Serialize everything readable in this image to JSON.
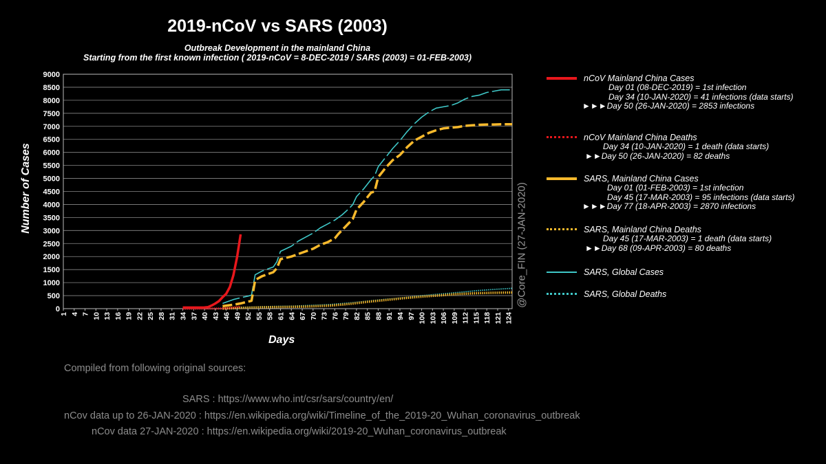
{
  "title": "2019-nCoV vs SARS (2003)",
  "subtitle1": "Outbreak Development in the mainland China",
  "subtitle2": "Starting from the first known infection ( 2019-nCoV = 8-DEC-2019 / SARS (2003) = 01-FEB-2003)",
  "watermark": "@Core_FIN  (27-JAN-2020)",
  "legend": [
    {
      "name": "nCoV Mainland China Cases",
      "color": "#e8171c",
      "style": "solid-thick",
      "lines": [
        "Day 01 (08-DEC-2019) = 1st infection",
        "Day 34 (10-JAN-2020) = 41 infections (data starts)",
        "►►►Day 50 (26-JAN-2020) = 2853 infections"
      ]
    },
    {
      "name": "nCoV Mainland China Deaths",
      "color": "#e8171c",
      "style": "dotted",
      "lines": [
        "Day 34 (10-JAN-2020) = 1 death (data starts)",
        "►►Day 50 (26-JAN-2020) = 82 deaths"
      ]
    },
    {
      "name": "SARS, Mainland China Cases",
      "color": "#f7b92c",
      "style": "dashed",
      "lines": [
        "Day 01 (01-FEB-2003) = 1st  infection",
        "Day 45 (17-MAR-2003) = 95 infections (data starts)",
        "►►►Day 77 (18-APR-2003) = 2870 infections"
      ]
    },
    {
      "name": "SARS, Mainland China Deaths",
      "color": "#f7b92c",
      "style": "dotted",
      "lines": [
        "Day 45 (17-MAR-2003) = 1 death (data starts)",
        "►►Day 68 (09-APR-2003) = 80 deaths"
      ]
    },
    {
      "name": "SARS, Global Cases",
      "color": "#3fc8c8",
      "style": "solid-thin",
      "lines": []
    },
    {
      "name": "SARS, Global Deaths",
      "color": "#3fc8c8",
      "style": "dotted",
      "lines": []
    }
  ],
  "sources": {
    "heading": "Compiled from following original sources:",
    "lines": [
      "SARS : https://www.who.int/csr/sars/country/en/",
      "nCov data up to 26-JAN-2020 : https://en.wikipedia.org/wiki/Timeline_of_the_2019-20_Wuhan_coronavirus_outbreak",
      "nCov data 27-JAN-2020 : https://en.wikipedia.org/wiki/2019-20_Wuhan_coronavirus_outbreak"
    ]
  },
  "chart_data": {
    "type": "line",
    "title": "2019-nCoV vs SARS (2003)",
    "xlabel": "Days",
    "ylabel": "Number of Cases",
    "xlim": [
      1,
      125
    ],
    "ylim": [
      0,
      9000
    ],
    "yticks": [
      0,
      500,
      1000,
      1500,
      2000,
      2500,
      3000,
      3500,
      4000,
      4500,
      5000,
      5500,
      6000,
      6500,
      7000,
      7500,
      8000,
      8500,
      9000
    ],
    "xticks": [
      1,
      4,
      7,
      10,
      13,
      16,
      19,
      22,
      25,
      28,
      31,
      34,
      37,
      40,
      43,
      46,
      49,
      52,
      55,
      58,
      61,
      64,
      67,
      70,
      73,
      76,
      79,
      82,
      85,
      88,
      91,
      94,
      97,
      100,
      103,
      106,
      109,
      112,
      115,
      118,
      121,
      124
    ],
    "grid": true,
    "series": [
      {
        "name": "nCoV Mainland China Cases",
        "color": "#e8171c",
        "x": [
          34,
          36,
          38,
          40,
          41,
          42,
          43,
          44,
          45,
          46,
          47,
          48,
          49,
          50
        ],
        "y": [
          41,
          41,
          41,
          45,
          62,
          121,
          198,
          291,
          440,
          571,
          830,
          1287,
          1975,
          2853
        ]
      },
      {
        "name": "nCoV Mainland China Deaths",
        "color": "#e8171c",
        "x": [
          34,
          40,
          42,
          44,
          46,
          48,
          50
        ],
        "y": [
          1,
          2,
          3,
          6,
          17,
          41,
          82
        ]
      },
      {
        "name": "SARS, Mainland China Cases",
        "color": "#f7b92c",
        "x": [
          45,
          48,
          50,
          52,
          53,
          54,
          56,
          58,
          59,
          60,
          61,
          64,
          66,
          68,
          70,
          72,
          74,
          76,
          77,
          80,
          81,
          82,
          84,
          86,
          87,
          88,
          90,
          92,
          94,
          96,
          98,
          100,
          102,
          104,
          106,
          108,
          110,
          112,
          114,
          116,
          118,
          120,
          122,
          125
        ],
        "y": [
          95,
          150,
          200,
          270,
          300,
          1100,
          1250,
          1350,
          1400,
          1550,
          1900,
          2000,
          2100,
          2200,
          2300,
          2450,
          2550,
          2700,
          2870,
          3300,
          3450,
          3800,
          4100,
          4450,
          4500,
          5050,
          5400,
          5700,
          5900,
          6200,
          6450,
          6600,
          6750,
          6850,
          6920,
          6950,
          6970,
          7020,
          7040,
          7060,
          7070,
          7070,
          7080,
          7080
        ]
      },
      {
        "name": "SARS, Mainland China Deaths",
        "color": "#f7b92c",
        "x": [
          45,
          50,
          55,
          60,
          68,
          75,
          80,
          85,
          90,
          95,
          100,
          105,
          110,
          115,
          120,
          125
        ],
        "y": [
          1,
          30,
          50,
          60,
          80,
          120,
          180,
          260,
          330,
          400,
          460,
          510,
          560,
          590,
          610,
          620
        ]
      },
      {
        "name": "SARS, Global Cases",
        "color": "#3fc8c8",
        "x": [
          45,
          48,
          50,
          52,
          53,
          54,
          56,
          58,
          59,
          60,
          61,
          64,
          66,
          68,
          70,
          72,
          74,
          76,
          78,
          80,
          81,
          82,
          84,
          86,
          87,
          88,
          90,
          92,
          94,
          96,
          98,
          100,
          102,
          104,
          106,
          108,
          110,
          112,
          114,
          116,
          118,
          120,
          122,
          125
        ],
        "y": [
          200,
          350,
          420,
          480,
          520,
          1300,
          1450,
          1550,
          1600,
          1800,
          2200,
          2400,
          2600,
          2750,
          2900,
          3100,
          3250,
          3400,
          3600,
          3850,
          4000,
          4300,
          4600,
          4950,
          5100,
          5450,
          5800,
          6150,
          6450,
          6800,
          7100,
          7350,
          7550,
          7700,
          7750,
          7800,
          7900,
          8050,
          8150,
          8200,
          8300,
          8350,
          8400,
          8400
        ]
      },
      {
        "name": "SARS, Global Deaths",
        "color": "#3fc8c8",
        "x": [
          45,
          50,
          55,
          60,
          65,
          70,
          75,
          80,
          85,
          90,
          95,
          100,
          105,
          110,
          115,
          120,
          125
        ],
        "y": [
          4,
          50,
          70,
          90,
          100,
          130,
          160,
          220,
          290,
          360,
          420,
          500,
          560,
          620,
          690,
          740,
          780
        ]
      }
    ]
  }
}
